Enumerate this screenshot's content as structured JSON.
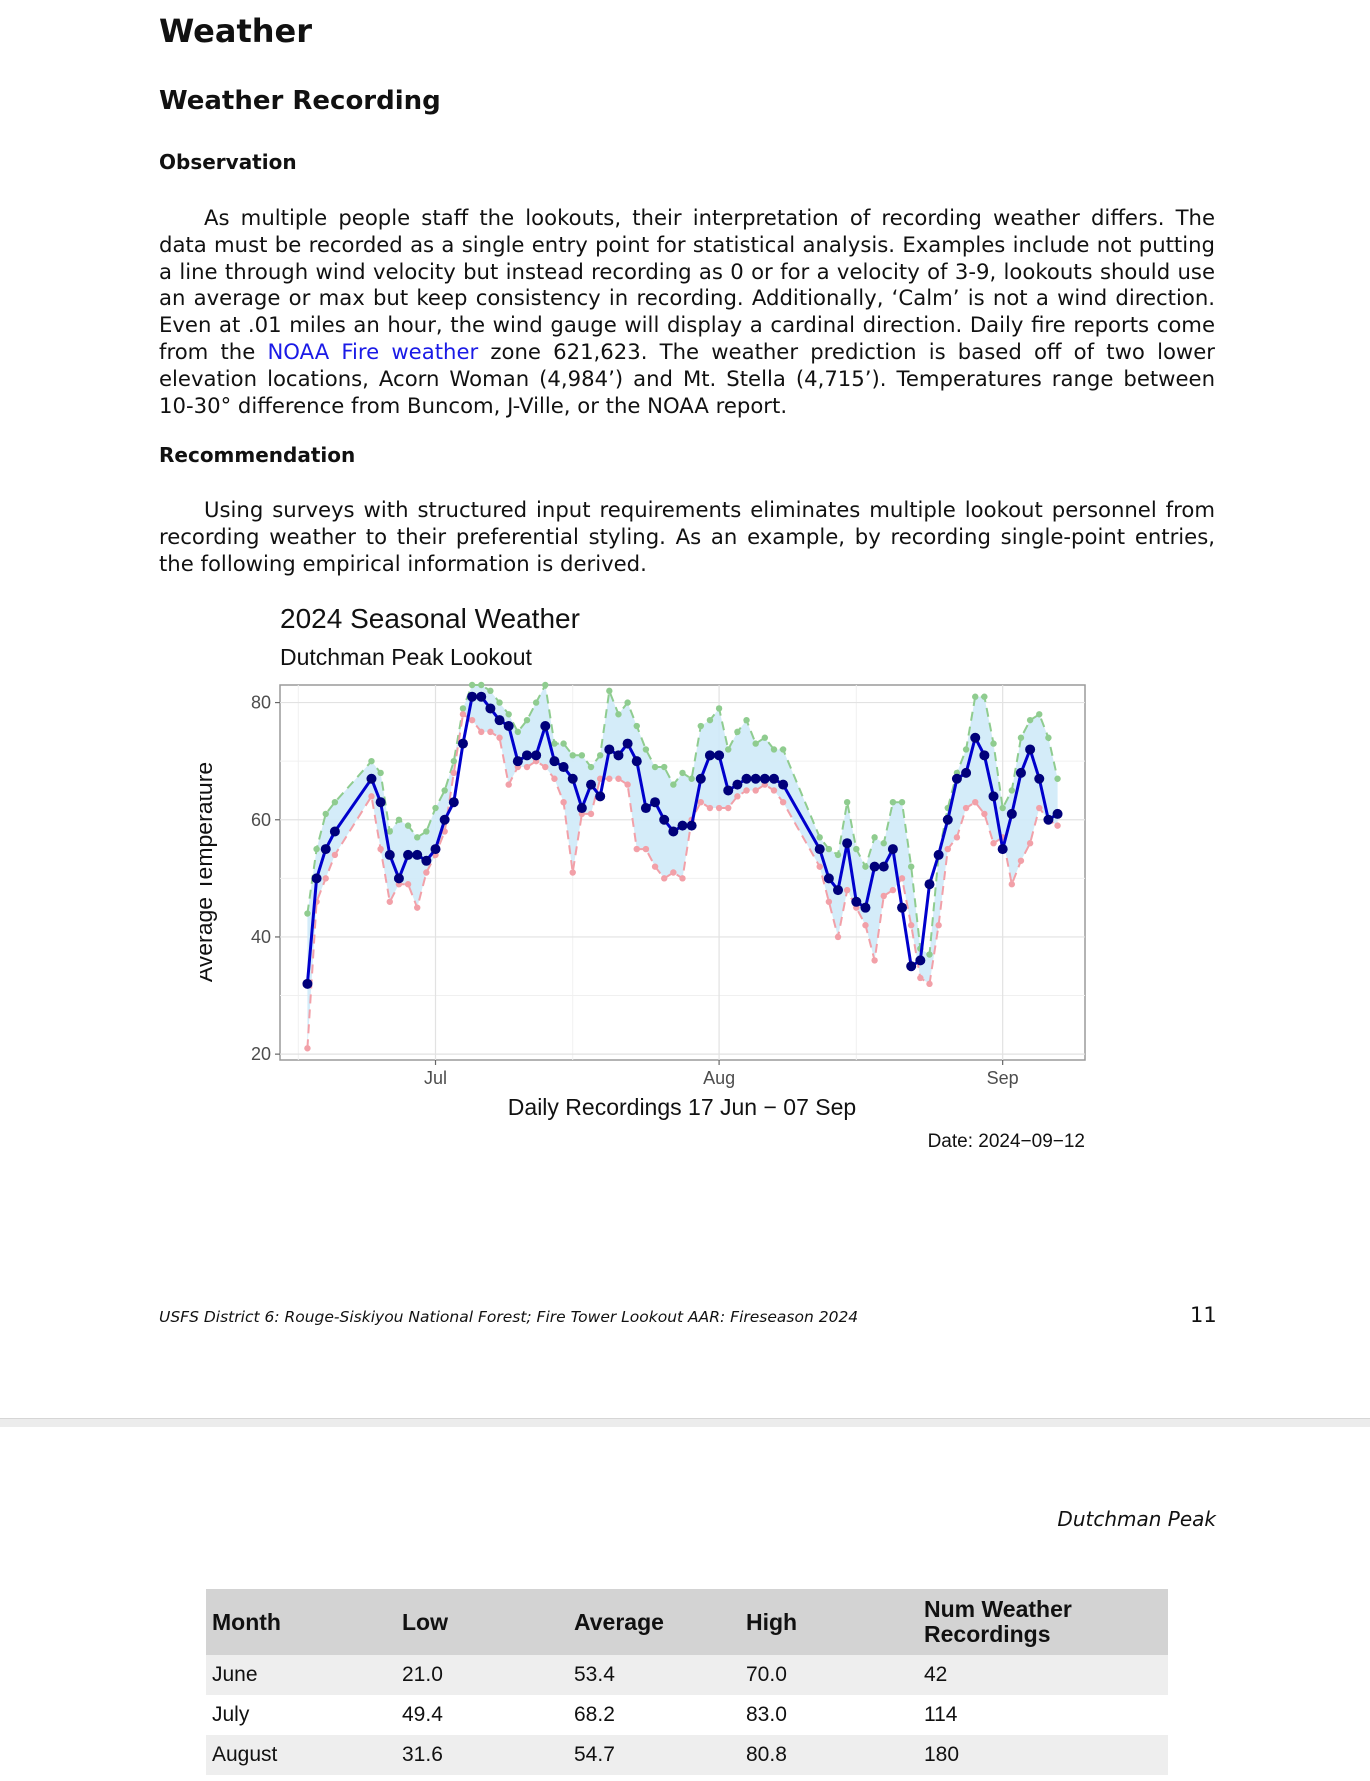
{
  "document": {
    "heading": "Weather",
    "section_title": "Weather Recording",
    "observation": {
      "title": "Observation",
      "text_before_link": "As multiple people staff the lookouts, their interpretation of recording weather differs. The data must be recorded as a single entry point for statistical analysis. Examples include not putting a line through wind velocity but instead recording as 0 or for a velocity of 3-9, lookouts should use an average or max but keep consistency in recording. Additionally, ‘Calm’ is not a wind direction. Even at .01 miles an hour, the wind gauge will display a cardinal direction. Daily fire reports come from the",
      "link_text": "NOAA Fire weather",
      "text_after_link": "zone 621,623. The weather prediction is based off of two lower elevation locations, Acorn Woman (4,984’) and Mt. Stella (4,715’). Temperatures range between 10-30° difference from Buncom, J-Ville, or the NOAA report."
    },
    "recommendation": {
      "title": "Recommendation",
      "text": "Using surveys with structured input requirements eliminates multiple lookout personnel from recording weather to their preferential styling. As an example, by recording single-point entries, the following empirical information is derived."
    },
    "footer": {
      "left": "USFS District 6: Rouge-Siskiyou National Forest; Fire Tower Lookout AAR: Fireseason 2024",
      "page_number": "11"
    },
    "page2_header": "Dutchman Peak",
    "colors": {
      "link": "#1a1ae6",
      "table_header_bg": "#d3d3d3",
      "table_stripe": "#eeeeee"
    }
  },
  "chart_data": {
    "type": "line",
    "title": "2024 Seasonal Weather",
    "subtitle": "Dutchman Peak Lookout",
    "xlabel": "Daily Recordings 17 Jun − 07 Sep",
    "ylabel": "Average Temperature",
    "caption": "Date: 2024−09−12",
    "xlim": [
      "2024-06-14",
      "2024-09-10"
    ],
    "ylim": [
      19,
      83
    ],
    "xticks": [
      {
        "date": "2024-07-01",
        "label": "Jul"
      },
      {
        "date": "2024-08-01",
        "label": "Aug"
      },
      {
        "date": "2024-09-01",
        "label": "Sep"
      }
    ],
    "yticks": [
      20,
      40,
      60,
      80
    ],
    "grid": true,
    "legend": "none",
    "colors": {
      "average": "#0000cc",
      "average_points": "#00007a",
      "high": "#8fcc8f",
      "low": "#f2a0a8",
      "band": "#cfeaf8"
    },
    "series": [
      {
        "name": "Low",
        "dates": [
          "2024-06-17",
          "2024-06-18",
          "2024-06-19",
          "2024-06-20",
          "2024-06-24",
          "2024-06-25",
          "2024-06-26",
          "2024-06-27",
          "2024-06-28",
          "2024-06-29",
          "2024-06-30",
          "2024-07-01",
          "2024-07-02",
          "2024-07-03",
          "2024-07-04",
          "2024-07-05",
          "2024-07-06",
          "2024-07-07",
          "2024-07-08",
          "2024-07-09",
          "2024-07-10",
          "2024-07-11",
          "2024-07-12",
          "2024-07-13",
          "2024-07-14",
          "2024-07-15",
          "2024-07-16",
          "2024-07-17",
          "2024-07-18",
          "2024-07-19",
          "2024-07-20",
          "2024-07-21",
          "2024-07-22",
          "2024-07-23",
          "2024-07-24",
          "2024-07-25",
          "2024-07-26",
          "2024-07-27",
          "2024-07-28",
          "2024-07-29",
          "2024-07-30",
          "2024-07-31",
          "2024-08-01",
          "2024-08-02",
          "2024-08-03",
          "2024-08-04",
          "2024-08-05",
          "2024-08-06",
          "2024-08-07",
          "2024-08-08",
          "2024-08-12",
          "2024-08-13",
          "2024-08-14",
          "2024-08-15",
          "2024-08-16",
          "2024-08-17",
          "2024-08-18",
          "2024-08-19",
          "2024-08-20",
          "2024-08-21",
          "2024-08-22",
          "2024-08-23",
          "2024-08-24",
          "2024-08-25",
          "2024-08-26",
          "2024-08-27",
          "2024-08-28",
          "2024-08-29",
          "2024-08-30",
          "2024-08-31",
          "2024-09-01",
          "2024-09-02",
          "2024-09-03",
          "2024-09-04",
          "2024-09-05",
          "2024-09-06",
          "2024-09-07"
        ],
        "values": [
          21,
          46,
          50,
          54,
          64,
          55,
          46,
          49,
          49,
          45,
          51,
          54,
          58,
          68,
          78,
          77,
          75,
          75,
          74,
          66,
          69,
          69,
          70,
          69,
          67,
          63,
          51,
          61,
          61,
          67,
          67,
          67,
          66,
          55,
          55,
          52,
          50,
          51,
          50,
          60,
          63,
          62,
          62,
          62,
          64,
          65,
          65,
          66,
          65,
          63,
          52,
          46,
          40,
          48,
          45,
          42,
          36,
          47,
          48,
          50,
          42,
          33,
          32,
          42,
          55,
          57,
          62,
          63,
          61,
          56,
          57,
          49,
          53,
          56,
          62,
          60,
          59
        ]
      },
      {
        "name": "Average",
        "dates": [
          "2024-06-17",
          "2024-06-18",
          "2024-06-19",
          "2024-06-20",
          "2024-06-24",
          "2024-06-25",
          "2024-06-26",
          "2024-06-27",
          "2024-06-28",
          "2024-06-29",
          "2024-06-30",
          "2024-07-01",
          "2024-07-02",
          "2024-07-03",
          "2024-07-04",
          "2024-07-05",
          "2024-07-06",
          "2024-07-07",
          "2024-07-08",
          "2024-07-09",
          "2024-07-10",
          "2024-07-11",
          "2024-07-12",
          "2024-07-13",
          "2024-07-14",
          "2024-07-15",
          "2024-07-16",
          "2024-07-17",
          "2024-07-18",
          "2024-07-19",
          "2024-07-20",
          "2024-07-21",
          "2024-07-22",
          "2024-07-23",
          "2024-07-24",
          "2024-07-25",
          "2024-07-26",
          "2024-07-27",
          "2024-07-28",
          "2024-07-29",
          "2024-07-30",
          "2024-07-31",
          "2024-08-01",
          "2024-08-02",
          "2024-08-03",
          "2024-08-04",
          "2024-08-05",
          "2024-08-06",
          "2024-08-07",
          "2024-08-08",
          "2024-08-12",
          "2024-08-13",
          "2024-08-14",
          "2024-08-15",
          "2024-08-16",
          "2024-08-17",
          "2024-08-18",
          "2024-08-19",
          "2024-08-20",
          "2024-08-21",
          "2024-08-22",
          "2024-08-23",
          "2024-08-24",
          "2024-08-25",
          "2024-08-26",
          "2024-08-27",
          "2024-08-28",
          "2024-08-29",
          "2024-08-30",
          "2024-08-31",
          "2024-09-01",
          "2024-09-02",
          "2024-09-03",
          "2024-09-04",
          "2024-09-05",
          "2024-09-06",
          "2024-09-07"
        ],
        "values": [
          32,
          50,
          55,
          58,
          67,
          63,
          54,
          50,
          54,
          54,
          53,
          55,
          60,
          63,
          73,
          81,
          81,
          79,
          77,
          76,
          70,
          71,
          71,
          76,
          70,
          69,
          67,
          62,
          66,
          64,
          72,
          71,
          73,
          70,
          62,
          63,
          60,
          58,
          59,
          59,
          67,
          71,
          71,
          65,
          66,
          67,
          67,
          67,
          67,
          66,
          55,
          50,
          48,
          56,
          46,
          45,
          52,
          52,
          55,
          45,
          35,
          36,
          49,
          54,
          60,
          67,
          68,
          74,
          71,
          64,
          55,
          61,
          68,
          72,
          67,
          60,
          61
        ]
      },
      {
        "name": "High",
        "dates": [
          "2024-06-17",
          "2024-06-18",
          "2024-06-19",
          "2024-06-20",
          "2024-06-24",
          "2024-06-25",
          "2024-06-26",
          "2024-06-27",
          "2024-06-28",
          "2024-06-29",
          "2024-06-30",
          "2024-07-01",
          "2024-07-02",
          "2024-07-03",
          "2024-07-04",
          "2024-07-05",
          "2024-07-06",
          "2024-07-07",
          "2024-07-08",
          "2024-07-09",
          "2024-07-10",
          "2024-07-11",
          "2024-07-12",
          "2024-07-13",
          "2024-07-14",
          "2024-07-15",
          "2024-07-16",
          "2024-07-17",
          "2024-07-18",
          "2024-07-19",
          "2024-07-20",
          "2024-07-21",
          "2024-07-22",
          "2024-07-23",
          "2024-07-24",
          "2024-07-25",
          "2024-07-26",
          "2024-07-27",
          "2024-07-28",
          "2024-07-29",
          "2024-07-30",
          "2024-07-31",
          "2024-08-01",
          "2024-08-02",
          "2024-08-03",
          "2024-08-04",
          "2024-08-05",
          "2024-08-06",
          "2024-08-07",
          "2024-08-08",
          "2024-08-12",
          "2024-08-13",
          "2024-08-14",
          "2024-08-15",
          "2024-08-16",
          "2024-08-17",
          "2024-08-18",
          "2024-08-19",
          "2024-08-20",
          "2024-08-21",
          "2024-08-22",
          "2024-08-23",
          "2024-08-24",
          "2024-08-25",
          "2024-08-26",
          "2024-08-27",
          "2024-08-28",
          "2024-08-29",
          "2024-08-30",
          "2024-08-31",
          "2024-09-01",
          "2024-09-02",
          "2024-09-03",
          "2024-09-04",
          "2024-09-05",
          "2024-09-06",
          "2024-09-07"
        ],
        "values": [
          44,
          55,
          61,
          63,
          70,
          68,
          58,
          60,
          59,
          57,
          58,
          62,
          65,
          70,
          79,
          83,
          83,
          82,
          80,
          78,
          75,
          77,
          80,
          83,
          73,
          73,
          71,
          71,
          69,
          71,
          82,
          78,
          80,
          76,
          72,
          69,
          69,
          66,
          68,
          67,
          76,
          77,
          79,
          72,
          75,
          77,
          73,
          74,
          72,
          72,
          57,
          55,
          54,
          63,
          55,
          52,
          57,
          56,
          63,
          63,
          52,
          38,
          37,
          54,
          62,
          68,
          72,
          81,
          81,
          73,
          62,
          65,
          74,
          77,
          78,
          74,
          67
        ]
      }
    ]
  },
  "monthly_table": {
    "columns": [
      "Month",
      "Low",
      "Average",
      "High",
      "Num Weather Recordings"
    ],
    "rows": [
      [
        "June",
        "21.0",
        "53.4",
        "70.0",
        "42"
      ],
      [
        "July",
        "49.4",
        "68.2",
        "83.0",
        "114"
      ],
      [
        "August",
        "31.6",
        "54.7",
        "80.8",
        "180"
      ]
    ]
  }
}
